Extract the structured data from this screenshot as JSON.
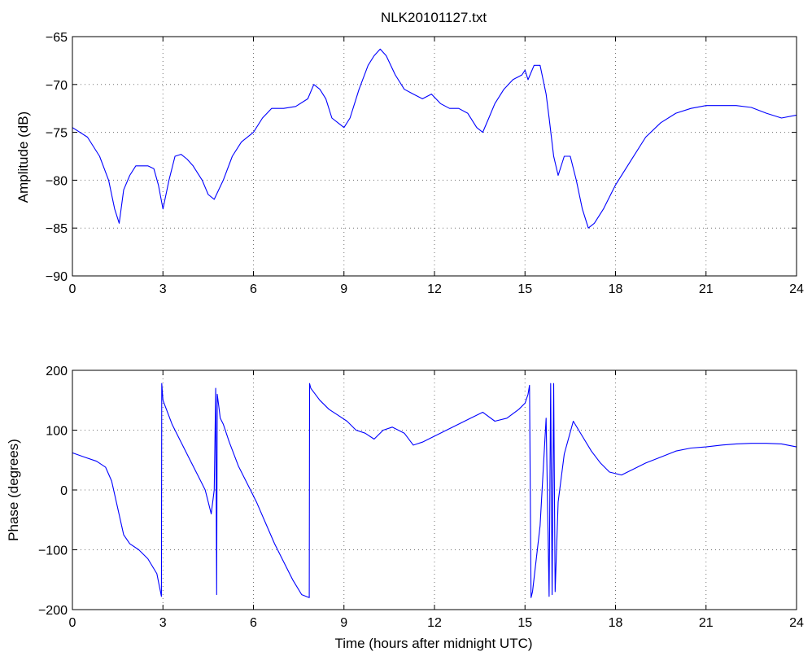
{
  "chart_data": [
    {
      "type": "line",
      "title": "NLK20101127.txt",
      "xlabel": "",
      "ylabel": "Amplitude (dB)",
      "xlim": [
        0,
        24
      ],
      "ylim": [
        -90,
        -65
      ],
      "xticks": [
        0,
        3,
        6,
        9,
        12,
        15,
        18,
        21,
        24
      ],
      "yticks": [
        -90,
        -85,
        -80,
        -75,
        -70,
        -65
      ],
      "grid": true,
      "series_color": "#0000ff",
      "series": [
        {
          "x": [
            0,
            0.5,
            0.9,
            1.2,
            1.4,
            1.55,
            1.7,
            1.9,
            2.1,
            2.3,
            2.5,
            2.7,
            2.85,
            3.0,
            3.2,
            3.4,
            3.6,
            3.8,
            4.0,
            4.3,
            4.5,
            4.7,
            5.0,
            5.3,
            5.6,
            6.0,
            6.3,
            6.6,
            7.0,
            7.4,
            7.8,
            8.0,
            8.2,
            8.4,
            8.6,
            8.8,
            9.0,
            9.2,
            9.5,
            9.8,
            10.0,
            10.2,
            10.4,
            10.7,
            11.0,
            11.3,
            11.6,
            11.9,
            12.2,
            12.5,
            12.8,
            13.1,
            13.4,
            13.6,
            13.8,
            14.0,
            14.3,
            14.6,
            14.9,
            15.0,
            15.1,
            15.3,
            15.5,
            15.7,
            15.8,
            15.95,
            16.1,
            16.3,
            16.5,
            16.7,
            16.9,
            17.1,
            17.3,
            17.6,
            18.0,
            18.5,
            19.0,
            19.5,
            20.0,
            20.5,
            21.0,
            21.5,
            22.0,
            22.5,
            23.0,
            23.5,
            24.0
          ],
          "y": [
            -74.5,
            -75.5,
            -77.5,
            -80.0,
            -83.0,
            -84.5,
            -81.0,
            -79.5,
            -78.5,
            -78.5,
            -78.5,
            -78.8,
            -80.5,
            -83.0,
            -80.0,
            -77.5,
            -77.3,
            -77.8,
            -78.5,
            -80.0,
            -81.5,
            -82.0,
            -80.0,
            -77.5,
            -76.0,
            -75.0,
            -73.5,
            -72.5,
            -72.5,
            -72.3,
            -71.5,
            -70.0,
            -70.5,
            -71.5,
            -73.5,
            -74.0,
            -74.5,
            -73.5,
            -70.5,
            -68.0,
            -67.0,
            -66.3,
            -67.0,
            -69.0,
            -70.5,
            -71.0,
            -71.5,
            -71.0,
            -72.0,
            -72.5,
            -72.5,
            -73.0,
            -74.5,
            -75.0,
            -73.5,
            -72.0,
            -70.5,
            -69.5,
            -69.0,
            -68.5,
            -69.5,
            -68.0,
            -68.0,
            -71.0,
            -73.5,
            -77.5,
            -79.5,
            -77.5,
            -77.5,
            -80.0,
            -83.0,
            -85.0,
            -84.5,
            -83.0,
            -80.5,
            -78.0,
            -75.5,
            -74.0,
            -73.0,
            -72.5,
            -72.2,
            -72.2,
            -72.2,
            -72.4,
            -73.0,
            -73.5,
            -73.2
          ]
        }
      ]
    },
    {
      "type": "line",
      "title": "",
      "xlabel": "Time (hours after midnight UTC)",
      "ylabel": "Phase (degrees)",
      "xlim": [
        0,
        24
      ],
      "ylim": [
        -200,
        200
      ],
      "xticks": [
        0,
        3,
        6,
        9,
        12,
        15,
        18,
        21,
        24
      ],
      "yticks": [
        -200,
        -100,
        0,
        100,
        200
      ],
      "grid": true,
      "series_color": "#0000ff",
      "series": [
        {
          "x": [
            0,
            0.4,
            0.8,
            1.1,
            1.3,
            1.5,
            1.7,
            1.9,
            2.2,
            2.5,
            2.8,
            2.95,
            2.96,
            3.0,
            3.3,
            3.6,
            3.9,
            4.2,
            4.4,
            4.6,
            4.7,
            4.75,
            4.78,
            4.8,
            4.85,
            4.9,
            5.0,
            5.2,
            5.5,
            5.8,
            6.1,
            6.4,
            6.7,
            7.0,
            7.3,
            7.6,
            7.85,
            7.86,
            7.9,
            8.2,
            8.5,
            8.8,
            9.1,
            9.4,
            9.7,
            10.0,
            10.3,
            10.6,
            11.0,
            11.3,
            11.6,
            12.0,
            12.4,
            12.8,
            13.2,
            13.6,
            14.0,
            14.4,
            14.8,
            15.0,
            15.1,
            15.15,
            15.2,
            15.25,
            15.5,
            15.7,
            15.8,
            15.85,
            15.9,
            15.95,
            16.0,
            16.1,
            16.3,
            16.6,
            16.9,
            17.2,
            17.5,
            17.8,
            18.2,
            18.6,
            19.0,
            19.5,
            20.0,
            20.5,
            21.0,
            21.5,
            22.0,
            22.5,
            23.0,
            23.5,
            24.0
          ],
          "y": [
            62,
            55,
            48,
            38,
            15,
            -30,
            -75,
            -90,
            -100,
            -115,
            -140,
            -178,
            178,
            150,
            110,
            80,
            50,
            20,
            0,
            -40,
            0,
            170,
            -175,
            160,
            140,
            120,
            110,
            80,
            40,
            10,
            -20,
            -55,
            -90,
            -120,
            -150,
            -175,
            -180,
            178,
            170,
            150,
            135,
            125,
            115,
            100,
            95,
            85,
            100,
            105,
            95,
            75,
            80,
            90,
            100,
            110,
            120,
            130,
            115,
            120,
            135,
            145,
            160,
            175,
            -180,
            -170,
            -60,
            120,
            -178,
            178,
            -175,
            178,
            -170,
            -20,
            60,
            115,
            90,
            65,
            45,
            30,
            25,
            35,
            45,
            55,
            65,
            70,
            72,
            75,
            77,
            78,
            78,
            77,
            72
          ]
        }
      ]
    }
  ]
}
